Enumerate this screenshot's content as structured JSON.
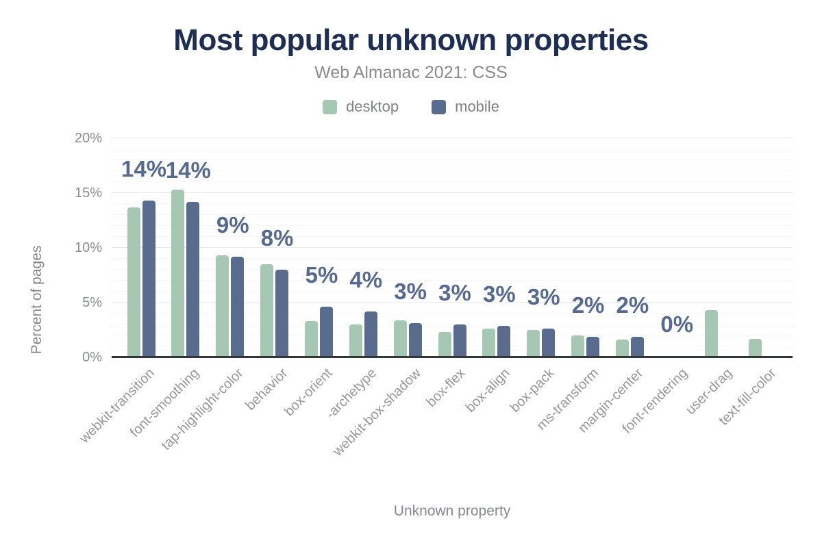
{
  "header": {
    "title": "Most popular unknown properties",
    "subtitle": "Web Almanac 2021: CSS"
  },
  "chart_data": {
    "type": "bar",
    "title": "Most popular unknown properties",
    "subtitle": "Web Almanac 2021: CSS",
    "xlabel": "Unknown property",
    "ylabel": "Percent of pages",
    "ylim": [
      0,
      20
    ],
    "y_ticks": [
      {
        "value": 0,
        "label": "0%"
      },
      {
        "value": 5,
        "label": "5%"
      },
      {
        "value": 10,
        "label": "10%"
      },
      {
        "value": 15,
        "label": "15%"
      },
      {
        "value": 20,
        "label": "20%"
      }
    ],
    "minor_grid_interval": 1,
    "major_grid_interval": 5,
    "grid": true,
    "legend_position": "top",
    "categories": [
      "webkit-transition",
      "font-smoothing",
      "tap-highlight-color",
      "behavior",
      "box-orient",
      "-archetype",
      "webkit-box-shadow",
      "box-flex",
      "box-align",
      "box-pack",
      "ms-transform",
      "margin-center",
      "font-rendering",
      "user-drag",
      "text-fill-color"
    ],
    "series": [
      {
        "name": "desktop",
        "color": "#a5c7b3",
        "values": [
          13.7,
          15.3,
          9.3,
          8.5,
          3.3,
          3.0,
          3.4,
          2.3,
          2.6,
          2.5,
          2.0,
          1.6,
          0.05,
          4.3,
          1.7
        ]
      },
      {
        "name": "mobile",
        "color": "#5a6c8e",
        "values": [
          14.3,
          14.2,
          9.2,
          8.0,
          4.6,
          4.2,
          3.1,
          3.0,
          2.9,
          2.6,
          1.9,
          1.9,
          0.15,
          0,
          0
        ]
      }
    ],
    "data_labels": [
      "14%",
      "14%",
      "9%",
      "8%",
      "5%",
      "4%",
      "3%",
      "3%",
      "3%",
      "3%",
      "2%",
      "2%",
      "0%",
      null,
      null
    ]
  },
  "colors": {
    "title": "#1e2d52",
    "subtitle": "#8b8b8b",
    "annotation": "#56698f",
    "axis_line": "#333639",
    "major_grid": "#e9e9e9",
    "minor_grid": "#f6f6f6",
    "desktop": "#a5c7b3",
    "mobile": "#5a6c8e"
  }
}
